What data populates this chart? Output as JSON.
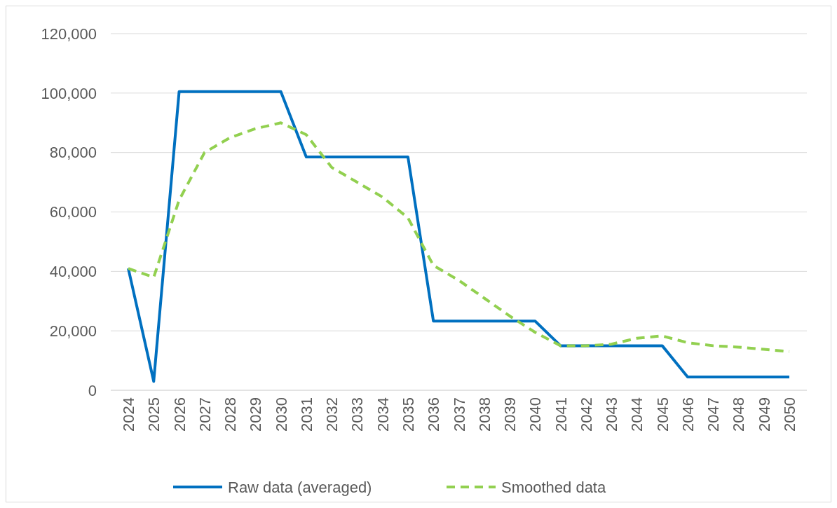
{
  "chart_data": {
    "type": "line",
    "categories": [
      "2024",
      "2025",
      "2026",
      "2027",
      "2028",
      "2029",
      "2030",
      "2031",
      "2032",
      "2033",
      "2034",
      "2035",
      "2036",
      "2037",
      "2038",
      "2039",
      "2040",
      "2041",
      "2042",
      "2043",
      "2044",
      "2045",
      "2046",
      "2047",
      "2048",
      "2049",
      "2050"
    ],
    "series": [
      {
        "name": "Raw data (averaged)",
        "color": "#0070c0",
        "line_style": "solid",
        "values": [
          41000,
          3000,
          100500,
          100500,
          100500,
          100500,
          100500,
          78500,
          78500,
          78500,
          78500,
          78500,
          23300,
          23300,
          23300,
          23300,
          23300,
          15000,
          15000,
          15000,
          15000,
          15000,
          4500,
          4500,
          4500,
          4500,
          4500
        ]
      },
      {
        "name": "Smoothed data",
        "color": "#92d050",
        "line_style": "dashed",
        "values": [
          41000,
          38000,
          64000,
          80000,
          85000,
          88000,
          90000,
          86000,
          75000,
          70000,
          65000,
          58000,
          42000,
          37000,
          31000,
          25000,
          19500,
          15000,
          15000,
          15500,
          17500,
          18300,
          16000,
          15000,
          14500,
          13800,
          13000
        ]
      }
    ],
    "ylim": [
      0,
      120000
    ],
    "yticks": [
      {
        "value": 0,
        "label": "0"
      },
      {
        "value": 20000,
        "label": "20,000"
      },
      {
        "value": 40000,
        "label": "40,000"
      },
      {
        "value": 60000,
        "label": "60,000"
      },
      {
        "value": 80000,
        "label": "80,000"
      },
      {
        "value": 100000,
        "label": "100,000"
      },
      {
        "value": 120000,
        "label": "120,000"
      }
    ],
    "grid": "y",
    "legend": "bottom",
    "marker": "none"
  }
}
